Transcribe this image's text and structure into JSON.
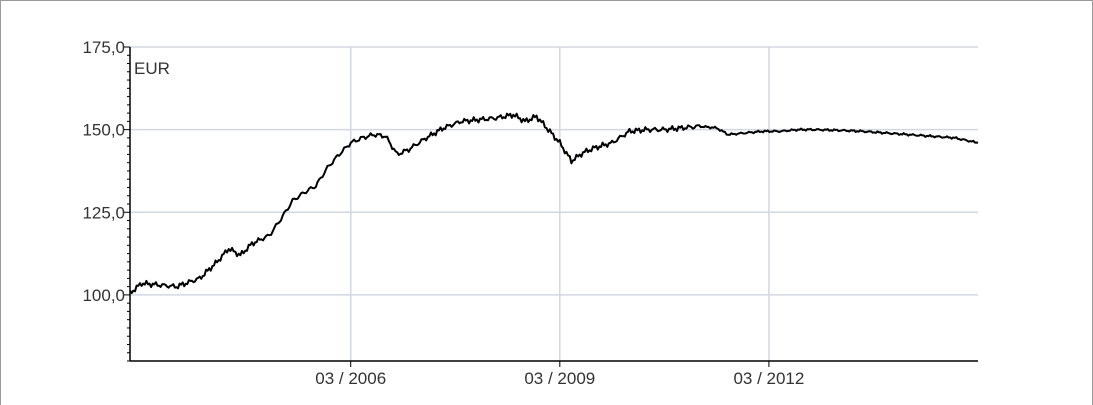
{
  "chart_data": {
    "type": "line",
    "title": "",
    "xlabel": "",
    "ylabel": "",
    "unit_label": "EUR",
    "ylim": [
      80,
      175
    ],
    "xlim": [
      "2003-01",
      "2015-03"
    ],
    "grid": true,
    "y_ticks": [
      {
        "value": 175,
        "label": "175,0"
      },
      {
        "value": 150,
        "label": "150,0"
      },
      {
        "value": 125,
        "label": "125,0"
      },
      {
        "value": 100,
        "label": "100,0"
      }
    ],
    "x_ticks": [
      {
        "value": "2006-03",
        "label": "03 / 2006"
      },
      {
        "value": "2009-03",
        "label": "03 / 2009"
      },
      {
        "value": "2012-03",
        "label": "03 / 2012"
      }
    ],
    "series": [
      {
        "color": "#000000",
        "points": [
          [
            "2003-01",
            100.5
          ],
          [
            "2003-03",
            103.5
          ],
          [
            "2003-06",
            103.0
          ],
          [
            "2003-09",
            102.5
          ],
          [
            "2004-01",
            105.0
          ],
          [
            "2004-04",
            110.0
          ],
          [
            "2004-06",
            114.0
          ],
          [
            "2004-08",
            112.0
          ],
          [
            "2004-10",
            115.5
          ],
          [
            "2005-01",
            118.0
          ],
          [
            "2005-03",
            123.0
          ],
          [
            "2005-05",
            128.5
          ],
          [
            "2005-07",
            131.0
          ],
          [
            "2005-09",
            133.0
          ],
          [
            "2005-11",
            138.5
          ],
          [
            "2006-01",
            142.5
          ],
          [
            "2006-03",
            146.0
          ],
          [
            "2006-05",
            147.5
          ],
          [
            "2006-07",
            148.5
          ],
          [
            "2006-09",
            148.0
          ],
          [
            "2006-11",
            142.5
          ],
          [
            "2007-01",
            144.0
          ],
          [
            "2007-04",
            147.5
          ],
          [
            "2007-07",
            150.5
          ],
          [
            "2007-10",
            152.5
          ],
          [
            "2008-01",
            153.0
          ],
          [
            "2008-04",
            153.5
          ],
          [
            "2008-07",
            154.5
          ],
          [
            "2008-09",
            152.5
          ],
          [
            "2008-11",
            154.0
          ],
          [
            "2009-01",
            150.0
          ],
          [
            "2009-03",
            146.0
          ],
          [
            "2009-05",
            140.5
          ],
          [
            "2009-07",
            143.0
          ],
          [
            "2009-09",
            144.5
          ],
          [
            "2009-12",
            146.0
          ],
          [
            "2010-03",
            149.5
          ],
          [
            "2010-06",
            150.0
          ],
          [
            "2010-09",
            150.0
          ],
          [
            "2010-12",
            150.5
          ],
          [
            "2011-03",
            151.0
          ],
          [
            "2011-06",
            150.5
          ],
          [
            "2011-08",
            148.5
          ],
          [
            "2011-11",
            149.0
          ],
          [
            "2012-02",
            149.5
          ],
          [
            "2012-05",
            149.5
          ],
          [
            "2012-08",
            150.0
          ],
          [
            "2012-11",
            150.0
          ],
          [
            "2013-03",
            149.8
          ],
          [
            "2013-07",
            149.5
          ],
          [
            "2013-11",
            149.0
          ],
          [
            "2014-03",
            148.5
          ],
          [
            "2014-07",
            148.0
          ],
          [
            "2014-11",
            147.5
          ],
          [
            "2015-03",
            146.0
          ]
        ]
      }
    ]
  }
}
